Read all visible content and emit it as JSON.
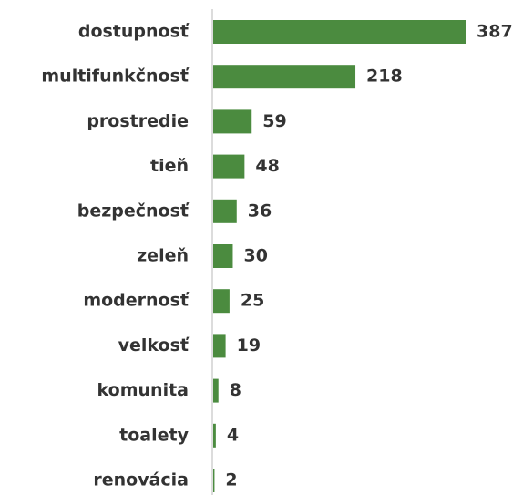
{
  "chart_data": {
    "type": "bar",
    "orientation": "horizontal",
    "categories": [
      "dostupnosť",
      "multifunkčnosť",
      "prostredie",
      "tieň",
      "bezpečnosť",
      "zeleň",
      "modernosť",
      "velkosť",
      "komunita",
      "toalety",
      "renovácia"
    ],
    "values": [
      387,
      218,
      59,
      48,
      36,
      30,
      25,
      19,
      8,
      4,
      2
    ],
    "color": "#4b8b3f"
  }
}
